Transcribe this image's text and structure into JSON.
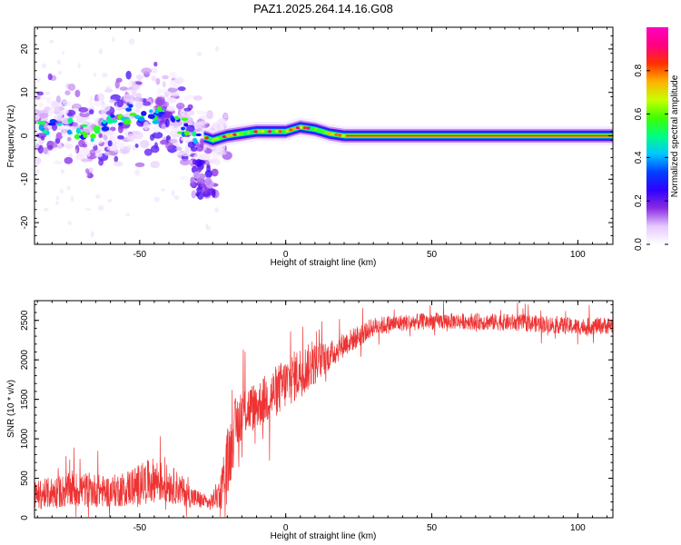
{
  "title": "PAZ1.2025.264.14.16.G08",
  "chart_data": [
    {
      "type": "heatmap",
      "name": "spectrogram",
      "xlabel": "Height of straight line (km)",
      "ylabel": "Frequency (Hz)",
      "xlim": [
        -86,
        112
      ],
      "ylim": [
        -25,
        25
      ],
      "xticks": [
        -50,
        0,
        50,
        100
      ],
      "yticks": [
        -20,
        -10,
        0,
        10,
        20
      ],
      "colorbar": {
        "label": "Normalized spectral amplitude",
        "range": [
          0.0,
          1.0
        ],
        "ticks": [
          "0.0",
          "0.2",
          "0.4",
          "0.6",
          "0.8"
        ],
        "tick_values": [
          0.0,
          0.2,
          0.4,
          0.6,
          0.8
        ],
        "colormap": [
          "#ffffff",
          "#e6c8ff",
          "#8a2be2",
          "#3000ff",
          "#0040ff",
          "#00c8ff",
          "#00ff80",
          "#40ff00",
          "#c8ff00",
          "#ffb000",
          "#ff3000",
          "#ff0080",
          "#ff00c0"
        ]
      },
      "ridge": [
        {
          "x": -86,
          "f": 1.5
        },
        {
          "x": -80,
          "f": 3
        },
        {
          "x": -75,
          "f": 2
        },
        {
          "x": -70,
          "f": 1
        },
        {
          "x": -65,
          "f": 0.5
        },
        {
          "x": -60,
          "f": 3
        },
        {
          "x": -55,
          "f": 5
        },
        {
          "x": -50,
          "f": 5.5
        },
        {
          "x": -45,
          "f": 5
        },
        {
          "x": -40,
          "f": 4
        },
        {
          "x": -35,
          "f": 2
        },
        {
          "x": -30,
          "f": 0
        },
        {
          "x": -27,
          "f": -0.5
        },
        {
          "x": -25,
          "f": -1
        },
        {
          "x": -20,
          "f": 0
        },
        {
          "x": -15,
          "f": 0.5
        },
        {
          "x": -10,
          "f": 1
        },
        {
          "x": -5,
          "f": 1
        },
        {
          "x": 0,
          "f": 1
        },
        {
          "x": 5,
          "f": 2
        },
        {
          "x": 10,
          "f": 1.5
        },
        {
          "x": 15,
          "f": 0.5
        },
        {
          "x": 20,
          "f": 0
        },
        {
          "x": 112,
          "f": 0
        }
      ]
    },
    {
      "type": "line",
      "name": "snr",
      "xlabel": "Height of straight line (km)",
      "ylabel": "SNR (10 * v/v)",
      "xlim": [
        -86,
        112
      ],
      "ylim": [
        0,
        2750
      ],
      "xticks": [
        -50,
        0,
        50,
        100
      ],
      "yticks": [
        0,
        500,
        1000,
        1500,
        2000,
        2500
      ],
      "color": "#ee3333",
      "envelope": [
        {
          "x": -86,
          "mean": 280,
          "amp": 300
        },
        {
          "x": -80,
          "mean": 320,
          "amp": 340
        },
        {
          "x": -70,
          "mean": 360,
          "amp": 380
        },
        {
          "x": -60,
          "mean": 330,
          "amp": 330
        },
        {
          "x": -52,
          "mean": 400,
          "amp": 420
        },
        {
          "x": -45,
          "mean": 480,
          "amp": 480
        },
        {
          "x": -38,
          "mean": 400,
          "amp": 380
        },
        {
          "x": -32,
          "mean": 260,
          "amp": 230
        },
        {
          "x": -26,
          "mean": 180,
          "amp": 140
        },
        {
          "x": -22,
          "mean": 350,
          "amp": 400
        },
        {
          "x": -20,
          "mean": 650,
          "amp": 800
        },
        {
          "x": -18,
          "mean": 1050,
          "amp": 700
        },
        {
          "x": -15,
          "mean": 1350,
          "amp": 550
        },
        {
          "x": -10,
          "mean": 1420,
          "amp": 500
        },
        {
          "x": -5,
          "mean": 1550,
          "amp": 550
        },
        {
          "x": 0,
          "mean": 1700,
          "amp": 550
        },
        {
          "x": 5,
          "mean": 1850,
          "amp": 550
        },
        {
          "x": 10,
          "mean": 1950,
          "amp": 450
        },
        {
          "x": 15,
          "mean": 2050,
          "amp": 300
        },
        {
          "x": 20,
          "mean": 2200,
          "amp": 260
        },
        {
          "x": 25,
          "mean": 2300,
          "amp": 240
        },
        {
          "x": 30,
          "mean": 2420,
          "amp": 200
        },
        {
          "x": 40,
          "mean": 2470,
          "amp": 180
        },
        {
          "x": 50,
          "mean": 2490,
          "amp": 180
        },
        {
          "x": 60,
          "mean": 2490,
          "amp": 170
        },
        {
          "x": 70,
          "mean": 2480,
          "amp": 180
        },
        {
          "x": 80,
          "mean": 2470,
          "amp": 180
        },
        {
          "x": 90,
          "mean": 2450,
          "amp": 180
        },
        {
          "x": 100,
          "mean": 2420,
          "amp": 180
        },
        {
          "x": 112,
          "mean": 2440,
          "amp": 180
        }
      ]
    }
  ]
}
